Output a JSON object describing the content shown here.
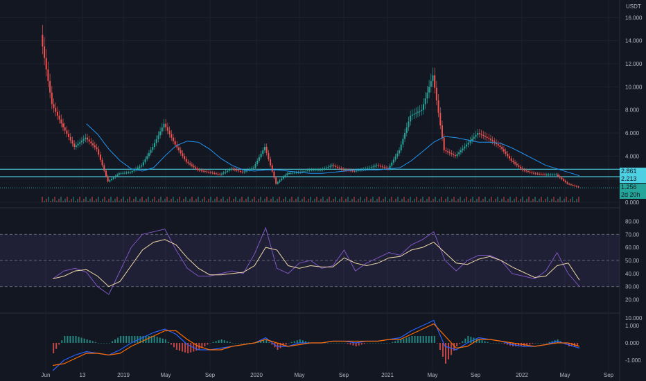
{
  "price_panel": {
    "currency": "USDT",
    "axis_ticks": [
      "16.000",
      "14.000",
      "12.000",
      "10.000",
      "8.000",
      "6.000",
      "4.000",
      "2.000",
      "0.000"
    ],
    "tags": [
      {
        "label": "2.861",
        "color": "#4dd0e1"
      },
      {
        "label": "2.213",
        "color": "#4dd0e1"
      },
      {
        "label": "1.256",
        "color": "#26a69a"
      },
      {
        "label": "2d 20h",
        "color": "#26a69a"
      }
    ]
  },
  "rsi_panel": {
    "axis_ticks": [
      "80.00",
      "70.00",
      "60.00",
      "50.00",
      "40.00",
      "30.00",
      "20.00"
    ],
    "band_color": "#7e57c2",
    "rsi_color": "#7e57c2",
    "ma_color": "#f0d9a8"
  },
  "macd_panel": {
    "axis_ticks": [
      "10.000",
      "1.000",
      "0.000",
      "-1.000"
    ],
    "macd_color": "#2962ff",
    "signal_color": "#ff6d00"
  },
  "time_axis": {
    "labels": [
      "Jun",
      "13",
      "2019",
      "May",
      "Sep",
      "2020",
      "May",
      "Sep",
      "2021",
      "May",
      "Sep",
      "2022",
      "May",
      "Sep"
    ]
  },
  "chart_data": {
    "type": "line",
    "price": {
      "x": [
        "2018-06",
        "2018-07",
        "2018-08",
        "2018-09",
        "2018-10",
        "2018-11",
        "2018-12",
        "2019-01",
        "2019-02",
        "2019-03",
        "2019-04",
        "2019-05",
        "2019-06",
        "2019-07",
        "2019-08",
        "2019-09",
        "2019-10",
        "2019-11",
        "2019-12",
        "2020-01",
        "2020-02",
        "2020-03",
        "2020-04",
        "2020-05",
        "2020-06",
        "2020-07",
        "2020-08",
        "2020-09",
        "2020-10",
        "2020-11",
        "2020-12",
        "2021-01",
        "2021-02",
        "2021-03",
        "2021-04",
        "2021-05",
        "2021-06",
        "2021-07",
        "2021-08",
        "2021-09",
        "2021-10",
        "2021-11",
        "2021-12",
        "2022-01",
        "2022-02",
        "2022-03",
        "2022-04",
        "2022-05",
        "2022-06"
      ],
      "close": [
        14.5,
        8.5,
        6.5,
        4.8,
        5.6,
        4.6,
        1.8,
        2.5,
        2.6,
        3.2,
        4.8,
        6.8,
        5.0,
        3.5,
        2.8,
        2.6,
        2.4,
        2.9,
        2.6,
        3.0,
        4.8,
        1.6,
        2.5,
        2.6,
        2.8,
        2.8,
        3.2,
        2.8,
        2.7,
        2.9,
        3.2,
        2.9,
        4.5,
        7.5,
        8.0,
        11.0,
        4.5,
        4.0,
        5.0,
        6.0,
        5.5,
        4.8,
        3.6,
        2.8,
        2.5,
        2.4,
        2.4,
        1.6,
        1.3
      ],
      "ma": [
        null,
        null,
        null,
        null,
        6.8,
        5.9,
        4.6,
        3.6,
        2.9,
        2.7,
        3.0,
        4.0,
        4.9,
        5.3,
        5.2,
        4.6,
        3.8,
        3.2,
        2.8,
        2.7,
        2.8,
        2.8,
        2.7,
        2.6,
        2.5,
        2.5,
        2.6,
        2.7,
        2.8,
        2.8,
        2.8,
        2.9,
        3.0,
        3.6,
        4.4,
        5.2,
        5.7,
        5.6,
        5.4,
        5.2,
        5.2,
        5.1,
        4.7,
        4.2,
        3.7,
        3.2,
        2.9,
        2.6,
        2.3
      ],
      "ylim": [
        0,
        16.8
      ],
      "support_levels": [
        2.861,
        2.213
      ],
      "last_price": 1.256
    },
    "rsi": {
      "x": [
        "2018-07",
        "2018-08",
        "2018-09",
        "2018-10",
        "2018-11",
        "2018-12",
        "2019-01",
        "2019-02",
        "2019-03",
        "2019-04",
        "2019-05",
        "2019-06",
        "2019-07",
        "2019-08",
        "2019-09",
        "2019-10",
        "2019-11",
        "2019-12",
        "2020-01",
        "2020-02",
        "2020-03",
        "2020-04",
        "2020-05",
        "2020-06",
        "2020-07",
        "2020-08",
        "2020-09",
        "2020-10",
        "2020-11",
        "2020-12",
        "2021-01",
        "2021-02",
        "2021-03",
        "2021-04",
        "2021-05",
        "2021-06",
        "2021-07",
        "2021-08",
        "2021-09",
        "2021-10",
        "2021-11",
        "2021-12",
        "2022-01",
        "2022-02",
        "2022-03",
        "2022-04",
        "2022-05",
        "2022-06"
      ],
      "rsi": [
        36,
        42,
        44,
        41,
        30,
        24,
        42,
        60,
        70,
        72,
        74,
        58,
        44,
        38,
        38,
        40,
        42,
        40,
        55,
        75,
        44,
        40,
        48,
        50,
        44,
        46,
        58,
        42,
        48,
        52,
        56,
        54,
        62,
        66,
        72,
        50,
        42,
        50,
        54,
        54,
        50,
        40,
        38,
        36,
        42,
        56,
        40,
        30
      ],
      "ma": [
        36,
        38,
        42,
        43,
        38,
        30,
        34,
        46,
        58,
        64,
        66,
        62,
        52,
        44,
        39,
        39,
        40,
        41,
        46,
        60,
        58,
        46,
        44,
        46,
        45,
        45,
        52,
        48,
        46,
        48,
        52,
        53,
        58,
        60,
        64,
        56,
        48,
        47,
        51,
        53,
        50,
        45,
        41,
        37,
        38,
        46,
        48,
        35
      ],
      "ylim": [
        15,
        85
      ],
      "bands": [
        30,
        50,
        70
      ]
    },
    "macd": {
      "x": [
        "2018-07",
        "2018-08",
        "2018-09",
        "2018-10",
        "2018-11",
        "2018-12",
        "2019-01",
        "2019-02",
        "2019-03",
        "2019-04",
        "2019-05",
        "2019-06",
        "2019-07",
        "2019-08",
        "2019-09",
        "2019-10",
        "2019-11",
        "2019-12",
        "2020-01",
        "2020-02",
        "2020-03",
        "2020-04",
        "2020-05",
        "2020-06",
        "2020-07",
        "2020-08",
        "2020-09",
        "2020-10",
        "2020-11",
        "2020-12",
        "2021-01",
        "2021-02",
        "2021-03",
        "2021-04",
        "2021-05",
        "2021-06",
        "2021-07",
        "2021-08",
        "2021-09",
        "2021-10",
        "2021-11",
        "2021-12",
        "2022-01",
        "2022-02",
        "2022-03",
        "2022-04",
        "2022-05",
        "2022-06"
      ],
      "macd": [
        -1.6,
        -1.0,
        -0.7,
        -0.5,
        -0.6,
        -0.7,
        -0.4,
        0.0,
        0.3,
        0.6,
        0.8,
        0.5,
        -0.1,
        -0.4,
        -0.4,
        -0.3,
        -0.2,
        -0.1,
        0.0,
        0.3,
        -0.2,
        -0.2,
        0.0,
        0.0,
        0.0,
        0.1,
        0.1,
        0.0,
        0.1,
        0.1,
        0.2,
        0.3,
        0.7,
        1.0,
        1.3,
        -0.2,
        -0.4,
        0.0,
        0.3,
        0.2,
        0.1,
        -0.1,
        -0.2,
        -0.2,
        -0.1,
        0.1,
        -0.1,
        -0.3
      ],
      "signal": [
        -1.3,
        -1.2,
        -0.9,
        -0.6,
        -0.6,
        -0.7,
        -0.6,
        -0.2,
        0.1,
        0.4,
        0.7,
        0.7,
        0.2,
        -0.2,
        -0.4,
        -0.4,
        -0.2,
        -0.1,
        0.0,
        0.2,
        0.0,
        -0.2,
        -0.1,
        0.0,
        0.0,
        0.1,
        0.1,
        0.1,
        0.1,
        0.1,
        0.2,
        0.2,
        0.5,
        0.8,
        1.1,
        0.4,
        -0.3,
        -0.2,
        0.2,
        0.2,
        0.1,
        0.0,
        -0.1,
        -0.2,
        -0.1,
        0.0,
        0.0,
        -0.2
      ],
      "ylim": [
        -1.4,
        1.4
      ]
    }
  }
}
